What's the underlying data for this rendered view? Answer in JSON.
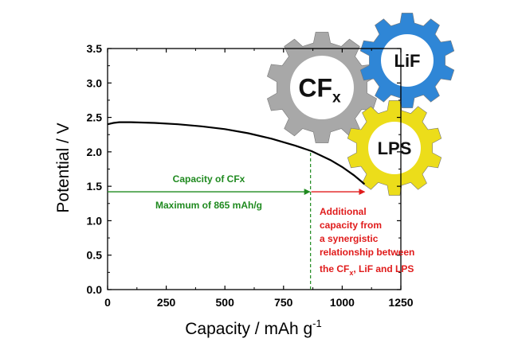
{
  "chart_data": {
    "type": "line",
    "xlabel": "Capacity / mAh g",
    "xlabel_sup": "-1",
    "ylabel": "Potential / V",
    "xlim": [
      0,
      1250
    ],
    "ylim": [
      0.0,
      3.5
    ],
    "xticks": [
      0,
      250,
      500,
      750,
      1000,
      1250
    ],
    "yticks": [
      0.0,
      0.5,
      1.0,
      1.5,
      2.0,
      2.5,
      3.0,
      3.5
    ],
    "xtick_labels": [
      "0",
      "250",
      "500",
      "750",
      "1000",
      "1250"
    ],
    "ytick_labels": [
      "0.0",
      "0.5",
      "1.0",
      "1.5",
      "2.0",
      "2.5",
      "3.0",
      "3.5"
    ],
    "grid": false,
    "series": [
      {
        "color": "#000000",
        "x": [
          0,
          25,
          50,
          100,
          200,
          300,
          400,
          500,
          600,
          700,
          800,
          870,
          950,
          1000,
          1050,
          1085,
          1095
        ],
        "y": [
          2.4,
          2.42,
          2.43,
          2.43,
          2.42,
          2.4,
          2.37,
          2.33,
          2.27,
          2.19,
          2.09,
          2.01,
          1.88,
          1.78,
          1.66,
          1.56,
          1.53
        ]
      }
    ],
    "reference_line": {
      "x": 865,
      "color": "#1f8a1f",
      "style": "dashed"
    },
    "annotations": {
      "green_arrow": {
        "x_start": 0,
        "x_end": 865,
        "y": 1.42,
        "color": "#1f8a1f"
      },
      "red_arrow": {
        "x_start": 865,
        "x_end": 1095,
        "y": 1.42,
        "color": "#e01b1b"
      },
      "green_label_top": "Capacity of CFx",
      "green_label_bottom": "Maximum of 865 mAh/g",
      "red_label_lines": [
        "Additional",
        "capacity from",
        "a synergistic",
        "relationship between",
        "the CF",
        ", LiF and LPS"
      ],
      "red_label_sub": "x"
    }
  },
  "gears": [
    {
      "label": "CF",
      "sub": "x",
      "color": "#a8a8a8"
    },
    {
      "label": "LiF",
      "sub": "",
      "color": "#2f86d6"
    },
    {
      "label": "LPS",
      "sub": "",
      "color": "#ecdd1a"
    }
  ]
}
